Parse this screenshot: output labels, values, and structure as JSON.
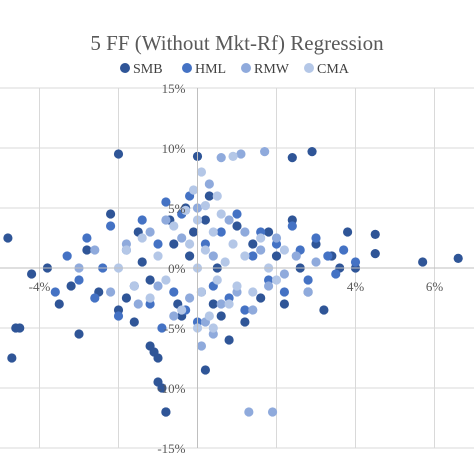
{
  "chart_data": {
    "type": "scatter",
    "title": "5 FF (Without Mkt-Rf) Regression",
    "xlabel": "",
    "ylabel": "",
    "xlim": [
      -0.05,
      0.07
    ],
    "ylim": [
      -0.15,
      0.15
    ],
    "x_ticks": [
      -0.04,
      0.04,
      0.06
    ],
    "x_tick_labels": [
      "-4%",
      "4%",
      "6%"
    ],
    "y_ticks": [
      0.15,
      0.1,
      0.05,
      0.0,
      -0.05,
      -0.1,
      -0.15
    ],
    "y_tick_labels": [
      "15%",
      "10%",
      "5%",
      "0%",
      "-5%",
      "-10%",
      "-15%"
    ],
    "legend_position": "top",
    "grid": true,
    "colors": {
      "SMB": "#2f5597",
      "HML": "#4472c4",
      "RMW": "#8faadc",
      "CMA": "#b4c7e7",
      "grid": "#d9d9d9",
      "text": "#595959"
    },
    "series": [
      {
        "name": "SMB",
        "color": "#2f5597",
        "points": [
          [
            -0.048,
            0.025
          ],
          [
            -0.047,
            -0.075
          ],
          [
            -0.046,
            -0.05
          ],
          [
            -0.045,
            -0.05
          ],
          [
            -0.042,
            -0.005
          ],
          [
            -0.038,
            0.0
          ],
          [
            -0.035,
            -0.03
          ],
          [
            -0.032,
            -0.015
          ],
          [
            -0.03,
            -0.055
          ],
          [
            -0.028,
            0.015
          ],
          [
            -0.025,
            -0.02
          ],
          [
            -0.022,
            0.045
          ],
          [
            -0.02,
            -0.035
          ],
          [
            -0.02,
            0.095
          ],
          [
            -0.018,
            -0.025
          ],
          [
            -0.016,
            -0.045
          ],
          [
            -0.015,
            0.03
          ],
          [
            -0.014,
            0.005
          ],
          [
            -0.012,
            -0.01
          ],
          [
            -0.012,
            -0.065
          ],
          [
            -0.011,
            -0.07
          ],
          [
            -0.01,
            -0.075
          ],
          [
            -0.01,
            -0.095
          ],
          [
            -0.009,
            -0.1
          ],
          [
            -0.008,
            -0.12
          ],
          [
            -0.008,
            -0.12
          ],
          [
            -0.007,
            0.04
          ],
          [
            -0.006,
            0.02
          ],
          [
            -0.005,
            -0.03
          ],
          [
            -0.004,
            -0.04
          ],
          [
            -0.003,
            0.05
          ],
          [
            -0.002,
            0.01
          ],
          [
            -0.001,
            0.03
          ],
          [
            0.0,
            0.093
          ],
          [
            0.001,
            -0.02
          ],
          [
            0.002,
            0.04
          ],
          [
            0.002,
            -0.085
          ],
          [
            0.003,
            0.06
          ],
          [
            0.004,
            -0.03
          ],
          [
            0.005,
            0.0
          ],
          [
            0.006,
            -0.04
          ],
          [
            0.008,
            -0.06
          ],
          [
            0.01,
            0.035
          ],
          [
            0.012,
            -0.045
          ],
          [
            0.014,
            0.02
          ],
          [
            0.016,
            -0.025
          ],
          [
            0.018,
            0.03
          ],
          [
            0.02,
            0.01
          ],
          [
            0.022,
            -0.03
          ],
          [
            0.024,
            0.04
          ],
          [
            0.026,
            0.0
          ],
          [
            0.028,
            -0.02
          ],
          [
            0.03,
            0.02
          ],
          [
            0.032,
            -0.035
          ],
          [
            0.034,
            0.01
          ],
          [
            0.036,
            0.0
          ],
          [
            0.038,
            0.03
          ],
          [
            0.04,
            0.0
          ],
          [
            0.045,
            0.012
          ],
          [
            0.045,
            0.028
          ],
          [
            0.057,
            0.005
          ],
          [
            0.066,
            0.008
          ],
          [
            0.029,
            0.097
          ],
          [
            0.024,
            0.092
          ]
        ]
      },
      {
        "name": "HML",
        "color": "#4472c4",
        "points": [
          [
            -0.036,
            -0.02
          ],
          [
            -0.033,
            0.01
          ],
          [
            -0.03,
            -0.01
          ],
          [
            -0.028,
            0.025
          ],
          [
            -0.026,
            -0.025
          ],
          [
            -0.024,
            0.0
          ],
          [
            -0.022,
            0.035
          ],
          [
            -0.02,
            -0.04
          ],
          [
            -0.018,
            0.015
          ],
          [
            -0.016,
            -0.015
          ],
          [
            -0.014,
            0.04
          ],
          [
            -0.012,
            -0.03
          ],
          [
            -0.01,
            0.02
          ],
          [
            -0.009,
            -0.05
          ],
          [
            -0.008,
            0.055
          ],
          [
            -0.006,
            -0.02
          ],
          [
            -0.004,
            0.045
          ],
          [
            -0.003,
            -0.035
          ],
          [
            -0.002,
            0.06
          ],
          [
            0.0,
            -0.045
          ],
          [
            0.002,
            0.02
          ],
          [
            0.004,
            -0.015
          ],
          [
            0.006,
            0.03
          ],
          [
            0.008,
            -0.025
          ],
          [
            0.01,
            0.045
          ],
          [
            0.012,
            -0.035
          ],
          [
            0.014,
            0.01
          ],
          [
            0.016,
            0.03
          ],
          [
            0.018,
            -0.01
          ],
          [
            0.02,
            0.02
          ],
          [
            0.022,
            -0.02
          ],
          [
            0.024,
            0.035
          ],
          [
            0.026,
            0.015
          ],
          [
            0.028,
            -0.01
          ],
          [
            0.03,
            0.025
          ],
          [
            0.033,
            0.01
          ],
          [
            0.035,
            -0.005
          ],
          [
            0.037,
            0.015
          ],
          [
            0.04,
            0.005
          ]
        ]
      },
      {
        "name": "RMW",
        "color": "#8faadc",
        "points": [
          [
            -0.03,
            0.0
          ],
          [
            -0.026,
            0.015
          ],
          [
            -0.022,
            -0.02
          ],
          [
            -0.018,
            0.02
          ],
          [
            -0.015,
            -0.03
          ],
          [
            -0.012,
            0.03
          ],
          [
            -0.01,
            -0.015
          ],
          [
            -0.008,
            0.04
          ],
          [
            -0.006,
            -0.04
          ],
          [
            -0.004,
            0.025
          ],
          [
            -0.002,
            -0.025
          ],
          [
            0.0,
            0.05
          ],
          [
            0.002,
            -0.045
          ],
          [
            0.003,
            0.07
          ],
          [
            0.004,
            0.01
          ],
          [
            0.006,
            -0.03
          ],
          [
            0.008,
            0.04
          ],
          [
            0.01,
            -0.02
          ],
          [
            0.012,
            0.03
          ],
          [
            0.014,
            -0.035
          ],
          [
            0.016,
            0.015
          ],
          [
            0.018,
            -0.015
          ],
          [
            0.02,
            0.025
          ],
          [
            0.022,
            -0.005
          ],
          [
            0.025,
            0.01
          ],
          [
            0.028,
            -0.02
          ],
          [
            0.03,
            0.005
          ],
          [
            0.013,
            -0.12
          ],
          [
            0.019,
            -0.12
          ],
          [
            0.006,
            0.092
          ],
          [
            0.011,
            0.095
          ],
          [
            0.017,
            0.097
          ],
          [
            0.004,
            -0.055
          ],
          [
            0.001,
            -0.065
          ]
        ]
      },
      {
        "name": "CMA",
        "color": "#b4c7e7",
        "points": [
          [
            -0.02,
            0.0
          ],
          [
            -0.018,
            0.015
          ],
          [
            -0.016,
            -0.015
          ],
          [
            -0.014,
            0.025
          ],
          [
            -0.012,
            -0.025
          ],
          [
            -0.01,
            0.01
          ],
          [
            -0.008,
            -0.01
          ],
          [
            -0.006,
            0.035
          ],
          [
            -0.004,
            -0.035
          ],
          [
            -0.002,
            0.02
          ],
          [
            0.0,
            0.0
          ],
          [
            0.0,
            0.04
          ],
          [
            0.001,
            -0.02
          ],
          [
            0.002,
            0.015
          ],
          [
            0.003,
            -0.04
          ],
          [
            0.004,
            0.03
          ],
          [
            0.005,
            -0.01
          ],
          [
            0.006,
            0.045
          ],
          [
            0.007,
            0.005
          ],
          [
            0.008,
            -0.03
          ],
          [
            0.009,
            0.02
          ],
          [
            0.01,
            -0.015
          ],
          [
            0.012,
            0.01
          ],
          [
            0.014,
            -0.02
          ],
          [
            0.016,
            0.025
          ],
          [
            0.018,
            0.0
          ],
          [
            0.02,
            -0.01
          ],
          [
            0.022,
            0.015
          ],
          [
            -0.001,
            0.065
          ],
          [
            0.001,
            0.08
          ],
          [
            0.002,
            0.052
          ],
          [
            -0.003,
            0.048
          ],
          [
            0.005,
            0.06
          ],
          [
            0.009,
            0.093
          ],
          [
            0.004,
            -0.05
          ],
          [
            0.0,
            -0.05
          ]
        ]
      }
    ]
  }
}
